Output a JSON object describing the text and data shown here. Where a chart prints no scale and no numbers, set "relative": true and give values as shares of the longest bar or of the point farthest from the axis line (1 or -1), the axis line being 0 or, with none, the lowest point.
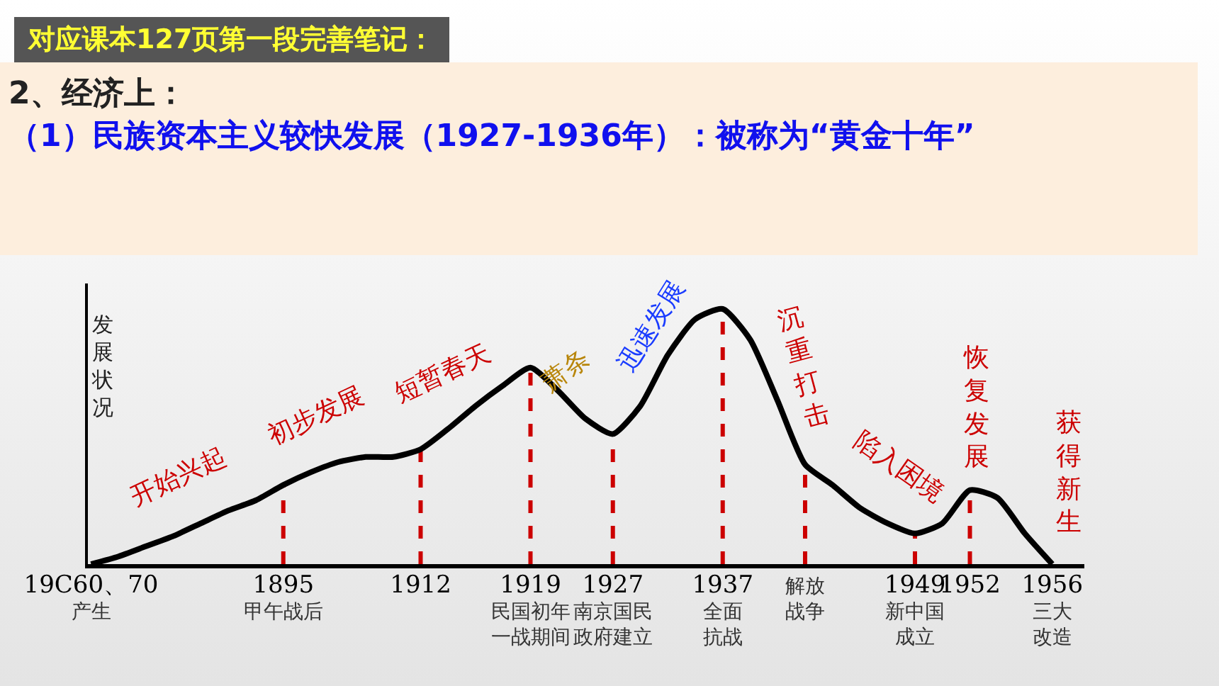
{
  "chart_data": {
    "type": "line",
    "title": "对应课本127页第一段完善笔记：",
    "subtitle": "2、经济上：",
    "relative": true,
    "grid": false,
    "legend": false,
    "marker": "none",
    "line_style": "solid",
    "categories": [
      "19C60、70\n产生",
      null,
      null,
      null,
      null,
      null,
      null,
      "1895\n甲午战后",
      null,
      null,
      null,
      null,
      "1912",
      null,
      null,
      null,
      "1919\n民国初年一战期间",
      null,
      null,
      "1927\n南京国民政府建立",
      null,
      null,
      null,
      "1937\n全面抗战",
      null,
      null,
      "解放战争",
      null,
      null,
      null,
      "1949\n新中国成立",
      null,
      "1952",
      null,
      null,
      "1956\n三大改造"
    ],
    "series": [
      {
        "color": "#000000",
        "values": [
          0,
          0.03,
          0.07,
          0.11,
          0.16,
          0.21,
          0.25,
          0.31,
          0.36,
          0.4,
          0.42,
          0.42,
          0.45,
          0.53,
          0.62,
          0.7,
          0.77,
          0.68,
          0.57,
          0.51,
          0.62,
          0.82,
          0.96,
          1,
          0.88,
          0.64,
          0.39,
          0.31,
          0.22,
          0.16,
          0.12,
          0.16,
          0.29,
          0.26,
          0.12,
          0
        ]
      }
    ],
    "ref_lines": [
      {
        "axis": "x",
        "value": "1895\n甲午战后",
        "color": "#cc0000",
        "line_style": "dashed"
      },
      {
        "axis": "x",
        "value": "1912",
        "color": "#cc0000",
        "line_style": "dashed"
      },
      {
        "axis": "x",
        "value": "1919\n民国初年一战期间",
        "color": "#cc0000",
        "line_style": "dashed"
      },
      {
        "axis": "x",
        "value": "1927\n南京国民政府建立",
        "color": "#cc0000",
        "line_style": "dashed"
      },
      {
        "axis": "x",
        "value": "1937\n全面抗战",
        "color": "#cc0000",
        "line_style": "dashed"
      },
      {
        "axis": "x",
        "value": "解放战争",
        "color": "#cc0000",
        "line_style": "dashed"
      },
      {
        "axis": "x",
        "value": "1949\n新中国成立",
        "color": "#cc0000",
        "line_style": "dashed"
      },
      {
        "axis": "x",
        "value": "1952",
        "color": "#cc0000",
        "line_style": "dashed"
      }
    ],
    "annotations": [
      "（1）民族资本主义较快发展（1927-1936年）：被称为“黄金十年”",
      "发展状况",
      "开始兴起",
      "初步发展",
      "短暂春天",
      "萧条",
      "迅速发展",
      "沉重打击",
      "陷入困境",
      "恢复发展",
      "获得新生"
    ]
  }
}
